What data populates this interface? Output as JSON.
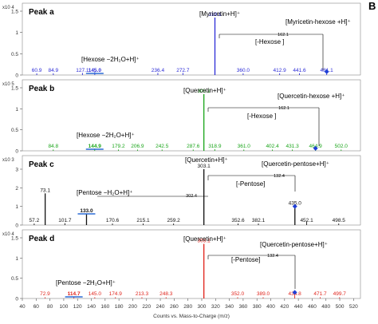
{
  "figure_label": "B",
  "chart_data": [
    {
      "type": "bar",
      "panel_title": "Peak a",
      "color": "#2b2bd6",
      "y_exponent_label": "x10 4",
      "y_ticks": [
        "0",
        "0.5",
        "1",
        "1.5"
      ],
      "ylim": [
        0,
        1.5
      ],
      "xlim": [
        40,
        530
      ],
      "peaks": [
        {
          "mz": 60.9,
          "label": "60.9",
          "intensity": 0.04
        },
        {
          "mz": 84.9,
          "label": "84.9",
          "intensity": 0.04
        },
        {
          "mz": 127.1,
          "label": "127.1",
          "intensity": 0.05
        },
        {
          "mz": 145.0,
          "label": "145.0",
          "intensity": 0.07,
          "highlight": true
        },
        {
          "mz": 236.4,
          "label": "236.4",
          "intensity": 0.05
        },
        {
          "mz": 272.7,
          "label": "272.7",
          "intensity": 0.05
        },
        {
          "mz": 319.1,
          "label": "319.1",
          "intensity": 1.35
        },
        {
          "mz": 360.0,
          "label": "360.0",
          "intensity": 0.04
        },
        {
          "mz": 412.9,
          "label": "412.9",
          "intensity": 0.04
        },
        {
          "mz": 441.6,
          "label": "441.6",
          "intensity": 0.04
        },
        {
          "mz": 481.1,
          "label": "481.1",
          "intensity": 0.08,
          "precursor": true
        }
      ],
      "annotations": [
        {
          "text": "[Myricetin+H]⁺",
          "near_mz": 319.1
        },
        {
          "text": "[Myricetin-hexose +H]⁺",
          "near_mz": 481.1
        },
        {
          "text": "162.1"
        },
        {
          "text": "[-Hexose ]"
        },
        {
          "text": "[Hexose −2H₂O+H]⁺",
          "near_mz": 145.0
        }
      ]
    },
    {
      "type": "bar",
      "panel_title": "Peak b",
      "color": "#1aa51a",
      "y_exponent_label": "x10 5",
      "y_ticks": [
        "0",
        "0.5",
        "1",
        "1.5"
      ],
      "ylim": [
        0,
        1.5
      ],
      "xlim": [
        40,
        530
      ],
      "peaks": [
        {
          "mz": 84.8,
          "label": "84.8",
          "intensity": 0.03
        },
        {
          "mz": 144.9,
          "label": "144.9",
          "intensity": 0.05,
          "highlight": true
        },
        {
          "mz": 179.2,
          "label": "179.2",
          "intensity": 0.03
        },
        {
          "mz": 206.9,
          "label": "206.9",
          "intensity": 0.03
        },
        {
          "mz": 242.5,
          "label": "242.5",
          "intensity": 0.03
        },
        {
          "mz": 287.6,
          "label": "287.6",
          "intensity": 0.03
        },
        {
          "mz": 303.1,
          "label": "303.1",
          "intensity": 1.35
        },
        {
          "mz": 318.9,
          "label": "318.9",
          "intensity": 0.04
        },
        {
          "mz": 361.0,
          "label": "361.0",
          "intensity": 0.03
        },
        {
          "mz": 402.4,
          "label": "402.4",
          "intensity": 0.03
        },
        {
          "mz": 431.3,
          "label": "431.3",
          "intensity": 0.03
        },
        {
          "mz": 464.9,
          "label": "464.9",
          "intensity": 0.06,
          "precursor": true
        },
        {
          "mz": 502.0,
          "label": "502.0",
          "intensity": 0.03
        }
      ],
      "annotations": [
        {
          "text": "[Quercetin+H]⁺",
          "near_mz": 303.1
        },
        {
          "text": "[Quercetin-hexose +H]⁺",
          "near_mz": 464.9
        },
        {
          "text": "162.1"
        },
        {
          "text": "[-Hexose ]"
        },
        {
          "text": "[Hexose −2H₂O+H]⁺",
          "near_mz": 144.9
        }
      ]
    },
    {
      "type": "bar",
      "panel_title": "Peak c",
      "color": "#111111",
      "y_exponent_label": "x10 3",
      "y_ticks": [
        "0",
        "1",
        "2",
        "3"
      ],
      "ylim": [
        0,
        3.3
      ],
      "xlim": [
        40,
        530
      ],
      "peaks": [
        {
          "mz": 57.2,
          "label": "57.2",
          "intensity": 0.08
        },
        {
          "mz": 73.1,
          "label": "73.1",
          "intensity": 1.7
        },
        {
          "mz": 101.7,
          "label": "101.7",
          "intensity": 0.1
        },
        {
          "mz": 133.0,
          "label": "133.0",
          "intensity": 0.6,
          "highlight": true
        },
        {
          "mz": 170.6,
          "label": "170.6",
          "intensity": 0.08
        },
        {
          "mz": 215.1,
          "label": "215.1",
          "intensity": 0.08
        },
        {
          "mz": 259.2,
          "label": "259.2",
          "intensity": 0.08
        },
        {
          "mz": 303.1,
          "label": "303.1",
          "intensity": 3.0
        },
        {
          "mz": 352.6,
          "label": "352.6",
          "intensity": 0.08
        },
        {
          "mz": 382.1,
          "label": "382.1",
          "intensity": 0.08
        },
        {
          "mz": 435.0,
          "label": "435.0",
          "intensity": 1.0,
          "precursor": true
        },
        {
          "mz": 452.1,
          "label": "452.1",
          "intensity": 0.2
        },
        {
          "mz": 498.5,
          "label": "498.5",
          "intensity": 0.08
        }
      ],
      "annotations": [
        {
          "text": "[Quercetin+H]⁺",
          "near_mz": 303.1
        },
        {
          "text": "[Quercetin-pentose+H]⁺",
          "near_mz": 435.0
        },
        {
          "text": "132.4"
        },
        {
          "text": "[-Pentose]"
        },
        {
          "text": "302.4"
        },
        {
          "text": "[Pentose −H₂O+H]⁺",
          "near_mz": 133.0
        }
      ]
    },
    {
      "type": "bar",
      "panel_title": "Peak d",
      "color": "#e0241c",
      "y_exponent_label": "x10 4",
      "y_ticks": [
        "0",
        "0.5",
        "1",
        "1.5"
      ],
      "ylim": [
        0,
        1.5
      ],
      "xlim": [
        40,
        530
      ],
      "peaks": [
        {
          "mz": 72.9,
          "label": "72.9",
          "intensity": 0.03
        },
        {
          "mz": 114.7,
          "label": "114.7",
          "intensity": 0.04,
          "highlight": true
        },
        {
          "mz": 145.0,
          "label": "145.0",
          "intensity": 0.03
        },
        {
          "mz": 174.9,
          "label": "174.9",
          "intensity": 0.03
        },
        {
          "mz": 213.3,
          "label": "213.3",
          "intensity": 0.03
        },
        {
          "mz": 248.3,
          "label": "248.3",
          "intensity": 0.03
        },
        {
          "mz": 303.1,
          "label": "303.1",
          "intensity": 1.35
        },
        {
          "mz": 352.0,
          "label": "352.0",
          "intensity": 0.03
        },
        {
          "mz": 389.0,
          "label": "389.0",
          "intensity": 0.03
        },
        {
          "mz": 434.8,
          "label": "434.8",
          "intensity": 0.15,
          "precursor": true
        },
        {
          "mz": 471.7,
          "label": "471.7",
          "intensity": 0.03
        },
        {
          "mz": 499.7,
          "label": "499.7",
          "intensity": 0.03
        }
      ],
      "annotations": [
        {
          "text": "[Quercetin+H]⁺",
          "near_mz": 303.1
        },
        {
          "text": "[Quercetin-pentose+H]⁺",
          "near_mz": 434.8
        },
        {
          "text": "132.4"
        },
        {
          "text": "[-Pentose]"
        },
        {
          "text": "[Pentose −2H₂O+H]⁺",
          "near_mz": 114.7
        }
      ]
    }
  ],
  "x_axis": {
    "ticks": [
      "40",
      "60",
      "80",
      "100",
      "120",
      "140",
      "160",
      "180",
      "200",
      "220",
      "240",
      "260",
      "280",
      "300",
      "320",
      "340",
      "360",
      "380",
      "400",
      "420",
      "440",
      "460",
      "480",
      "500",
      "520"
    ],
    "xlabel": "Counts vs. Mass-to-Charge (m/z)"
  }
}
